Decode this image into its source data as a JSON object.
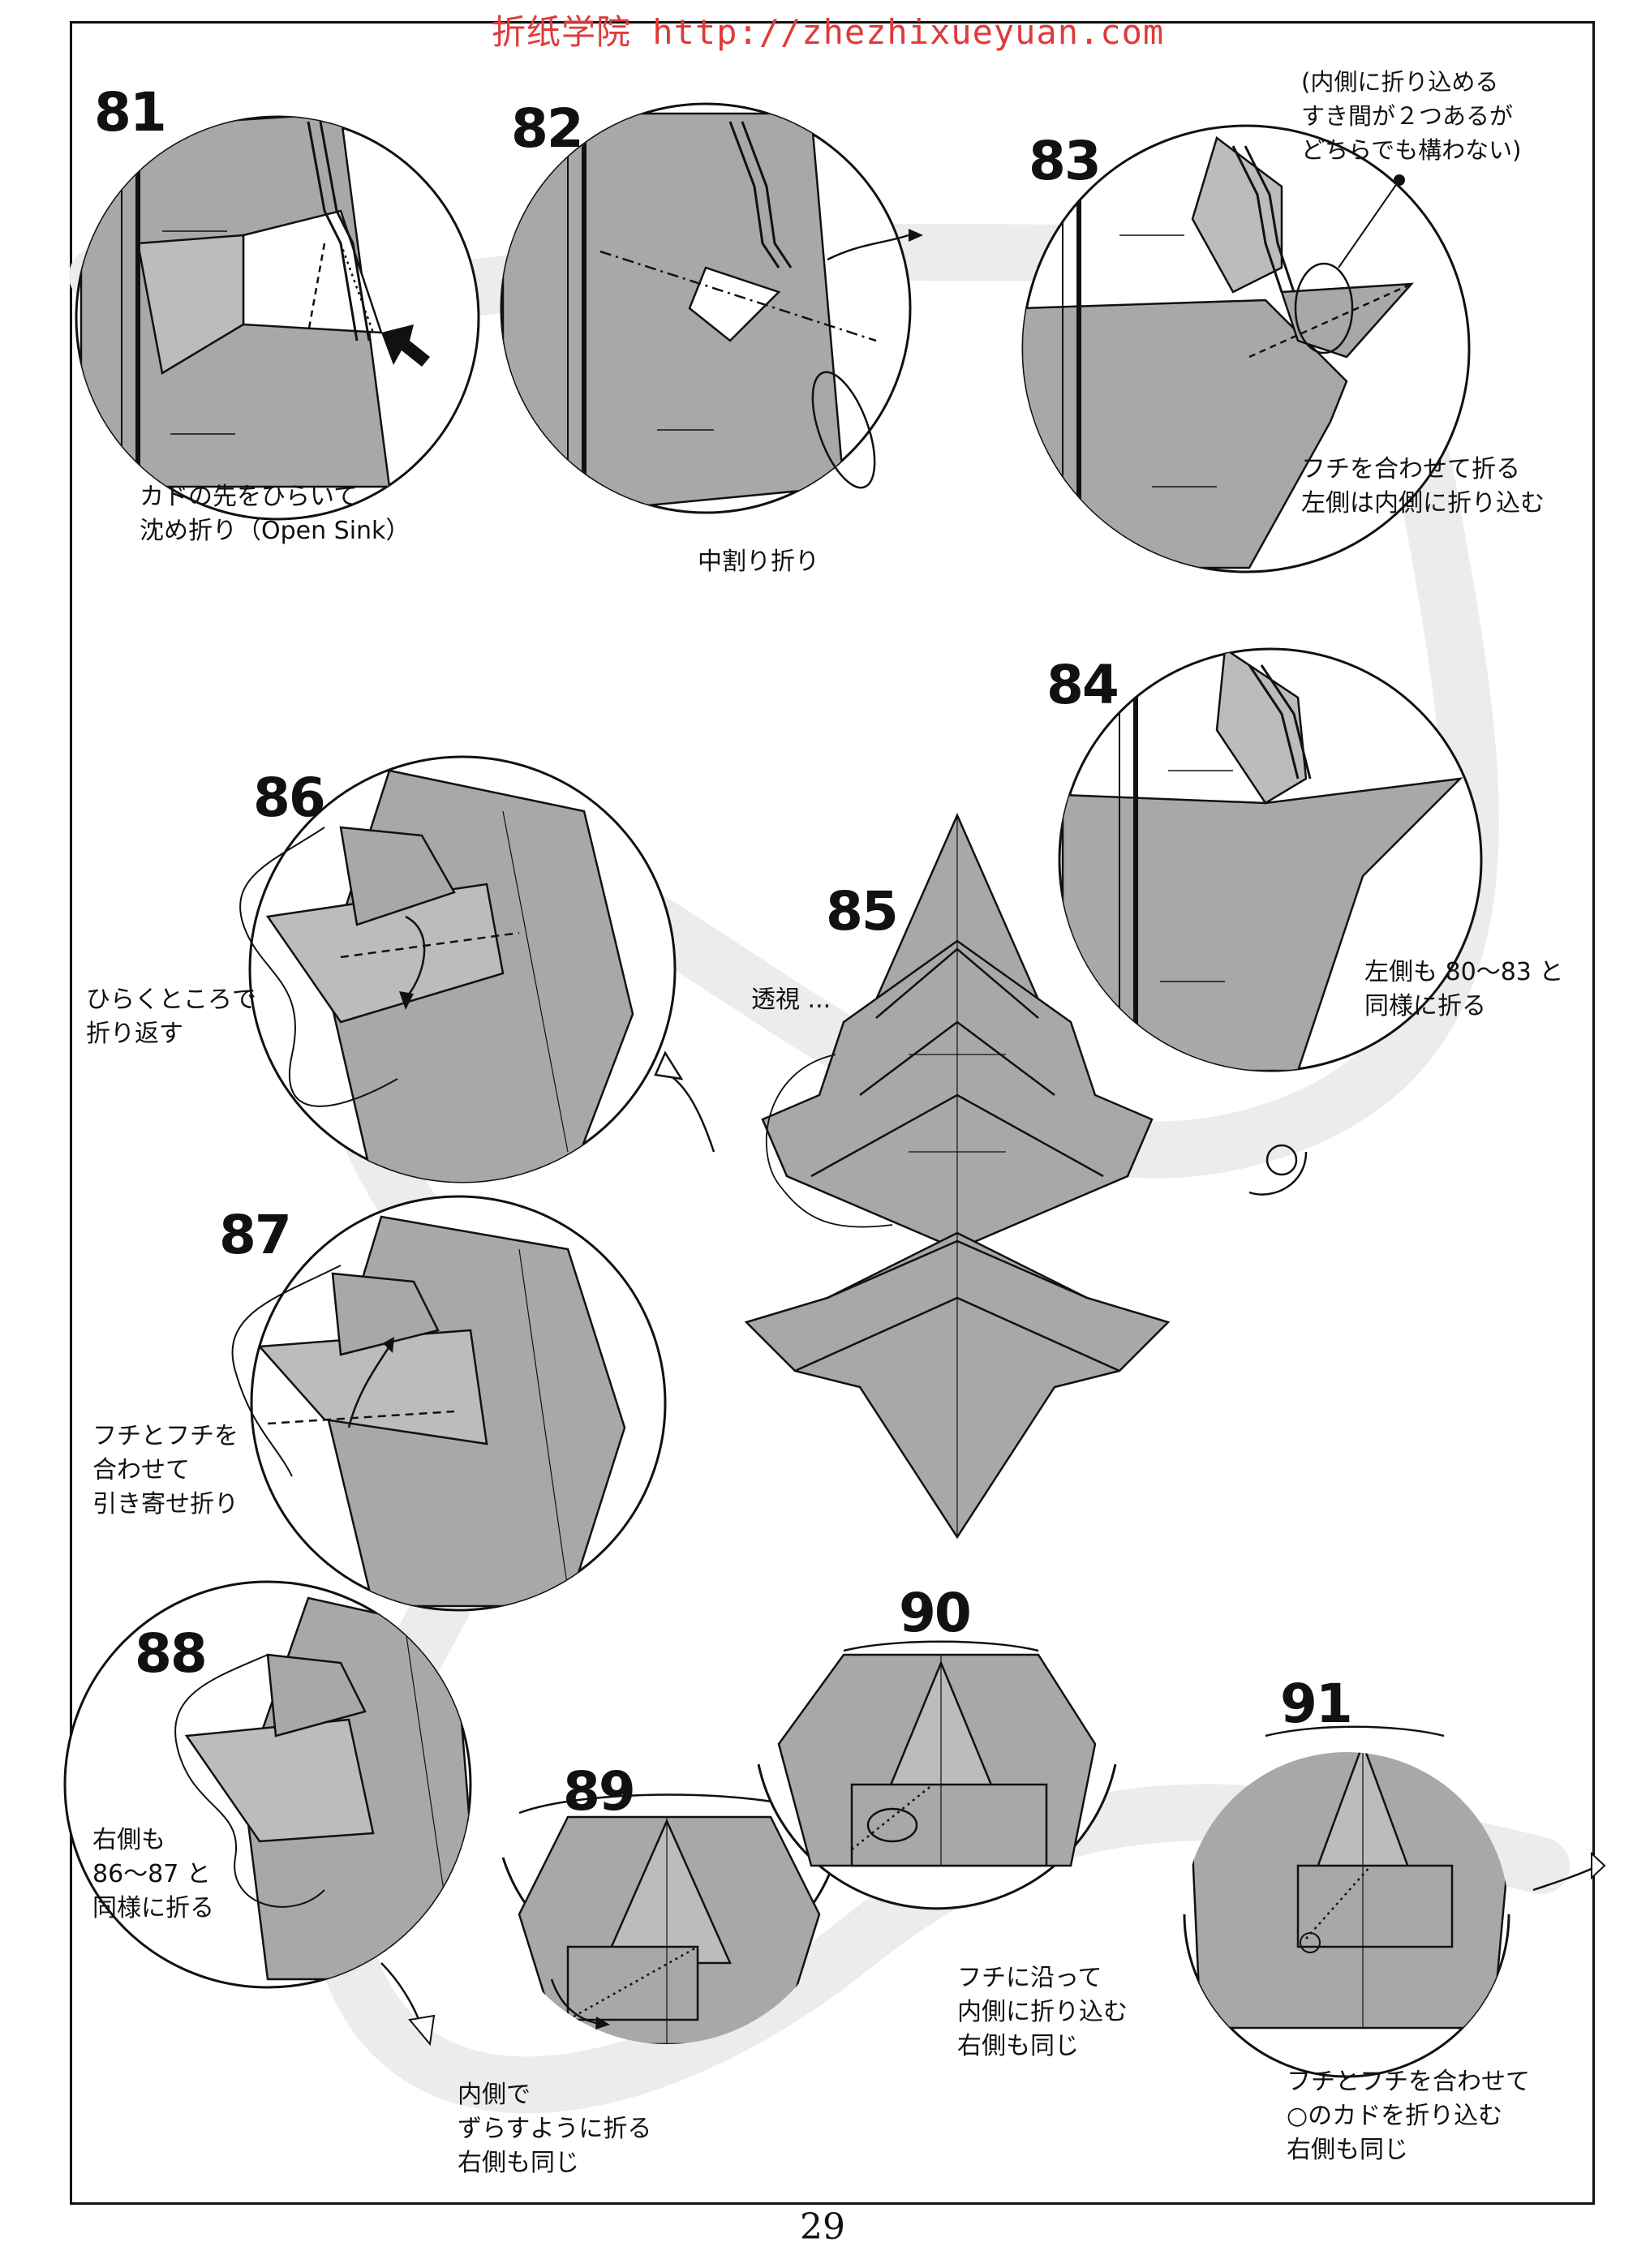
{
  "watermark": "折纸学院 http://zhezhixueyuan.com",
  "page_number": "29",
  "steps": [
    {
      "number": "81",
      "caption": [
        "カドの先をひらいて",
        "沈め折り（Open Sink）"
      ]
    },
    {
      "number": "82",
      "caption": [
        "中割り折り"
      ]
    },
    {
      "number": "83",
      "caption": [
        "フチを合わせて折る",
        "左側は内側に折り込む"
      ],
      "note": [
        "(内側に折り込める",
        "すき間が２つあるが",
        "どちらでも構わない)"
      ]
    },
    {
      "number": "84",
      "caption": [
        "左側も 80〜83 と",
        "同様に折る"
      ]
    },
    {
      "number": "85",
      "caption": [
        "透視 ..."
      ]
    },
    {
      "number": "86",
      "caption": [
        "ひらくところで",
        "折り返す"
      ]
    },
    {
      "number": "87",
      "caption": [
        "フチとフチを",
        "合わせて",
        "引き寄せ折り"
      ]
    },
    {
      "number": "88",
      "caption": [
        "右側も",
        "86〜87 と",
        "同様に折る"
      ]
    },
    {
      "number": "89",
      "caption": [
        "内側で",
        "ずらすように折る",
        "右側も同じ"
      ]
    },
    {
      "number": "90",
      "caption": [
        "フチに沿って",
        "内側に折り込む",
        "右側も同じ"
      ]
    },
    {
      "number": "91",
      "caption": [
        "フチとフチを合わせて",
        "○のカドを折り込む",
        "右側も同じ"
      ]
    }
  ],
  "colors": {
    "paper": "#a8a8a8",
    "paper_light": "#c4c4c4",
    "ink": "#111111",
    "band": "#ececec",
    "watermark": "#e03a3a"
  }
}
